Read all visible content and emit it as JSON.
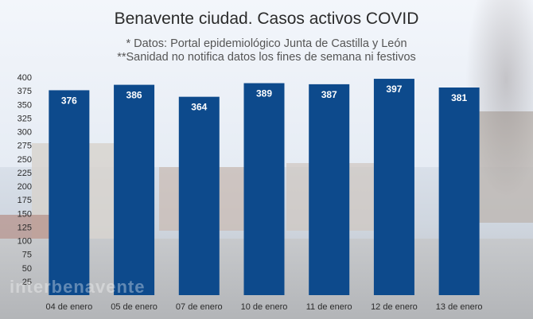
{
  "chart_data": {
    "type": "bar",
    "title": "Benavente ciudad. Casos activos COVID",
    "subtitle_1": "* Datos: Portal epidemiológico Junta de Castilla y León",
    "subtitle_2": "**Sanidad no notifica datos los fines de semana ni festivos",
    "categories": [
      "04 de enero",
      "05 de enero",
      "07 de enero",
      "10 de enero",
      "11 de enero",
      "12 de enero",
      "13 de enero"
    ],
    "values": [
      376,
      386,
      364,
      389,
      387,
      397,
      381
    ],
    "ylim": [
      0,
      400
    ],
    "yticks": [
      25,
      50,
      75,
      100,
      125,
      150,
      175,
      200,
      225,
      250,
      275,
      300,
      325,
      350,
      375,
      400
    ],
    "xlabel": "",
    "ylabel": "",
    "bar_color": "#0d4a8c",
    "label_color": "#ffffff"
  },
  "watermark": "interbenavente"
}
